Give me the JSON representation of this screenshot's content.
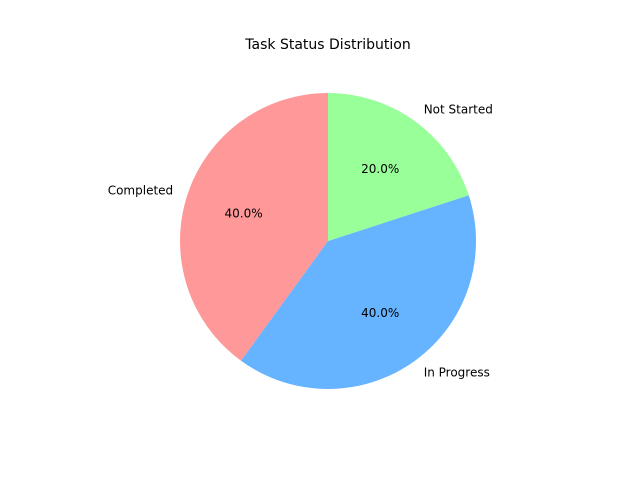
{
  "chart_data": {
    "type": "pie",
    "title": "Task Status Distribution",
    "labels": [
      "Completed",
      "In Progress",
      "Not Started"
    ],
    "values": [
      40.0,
      40.0,
      20.0
    ],
    "percent_labels": [
      "40.0%",
      "40.0%",
      "20.0%"
    ],
    "colors": [
      "#ff9999",
      "#66b3ff",
      "#99ff99"
    ],
    "start_angle_deg": 90,
    "direction": "counterclockwise",
    "legend": "none"
  }
}
